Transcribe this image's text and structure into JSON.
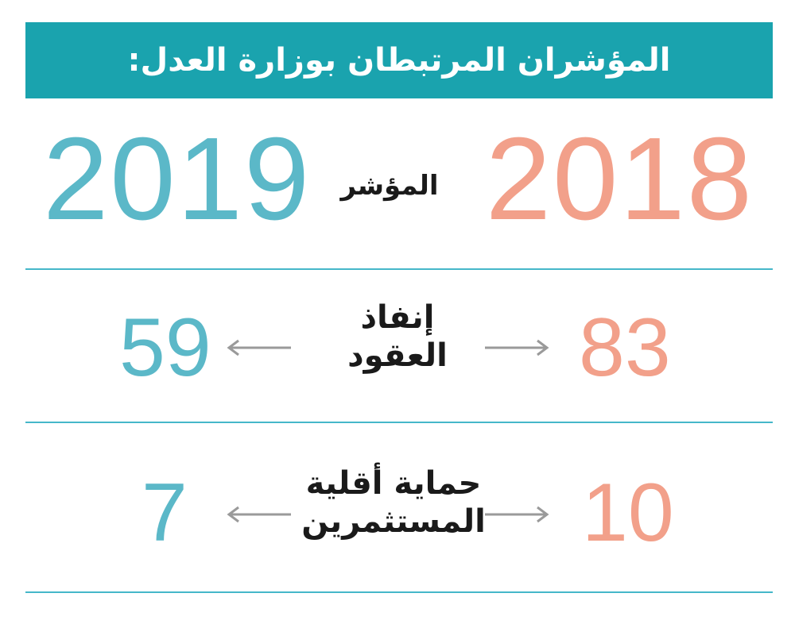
{
  "banner": {
    "title": "المؤشران المرتبطان بوزارة العدل:",
    "background_color": "#1aa3ae"
  },
  "header_row": {
    "year_left": "2019",
    "year_right": "2018",
    "label": "المؤشر"
  },
  "rows": [
    {
      "label_line1": "إنفاذ",
      "label_line2": "العقود",
      "value_2018": "83",
      "value_2019": "59"
    },
    {
      "label_line1": "حماية أقلية",
      "label_line2": "المستثمرين",
      "value_2018": "10",
      "value_2019": "7"
    }
  ],
  "colors": {
    "year_2019": "#5bb8c8",
    "year_2018": "#f2a08a",
    "divider": "#45b7c9",
    "arrow": "#9a9a9a"
  },
  "icons": {
    "arrow_left": "arrow-left-icon",
    "arrow_right": "arrow-right-icon"
  }
}
